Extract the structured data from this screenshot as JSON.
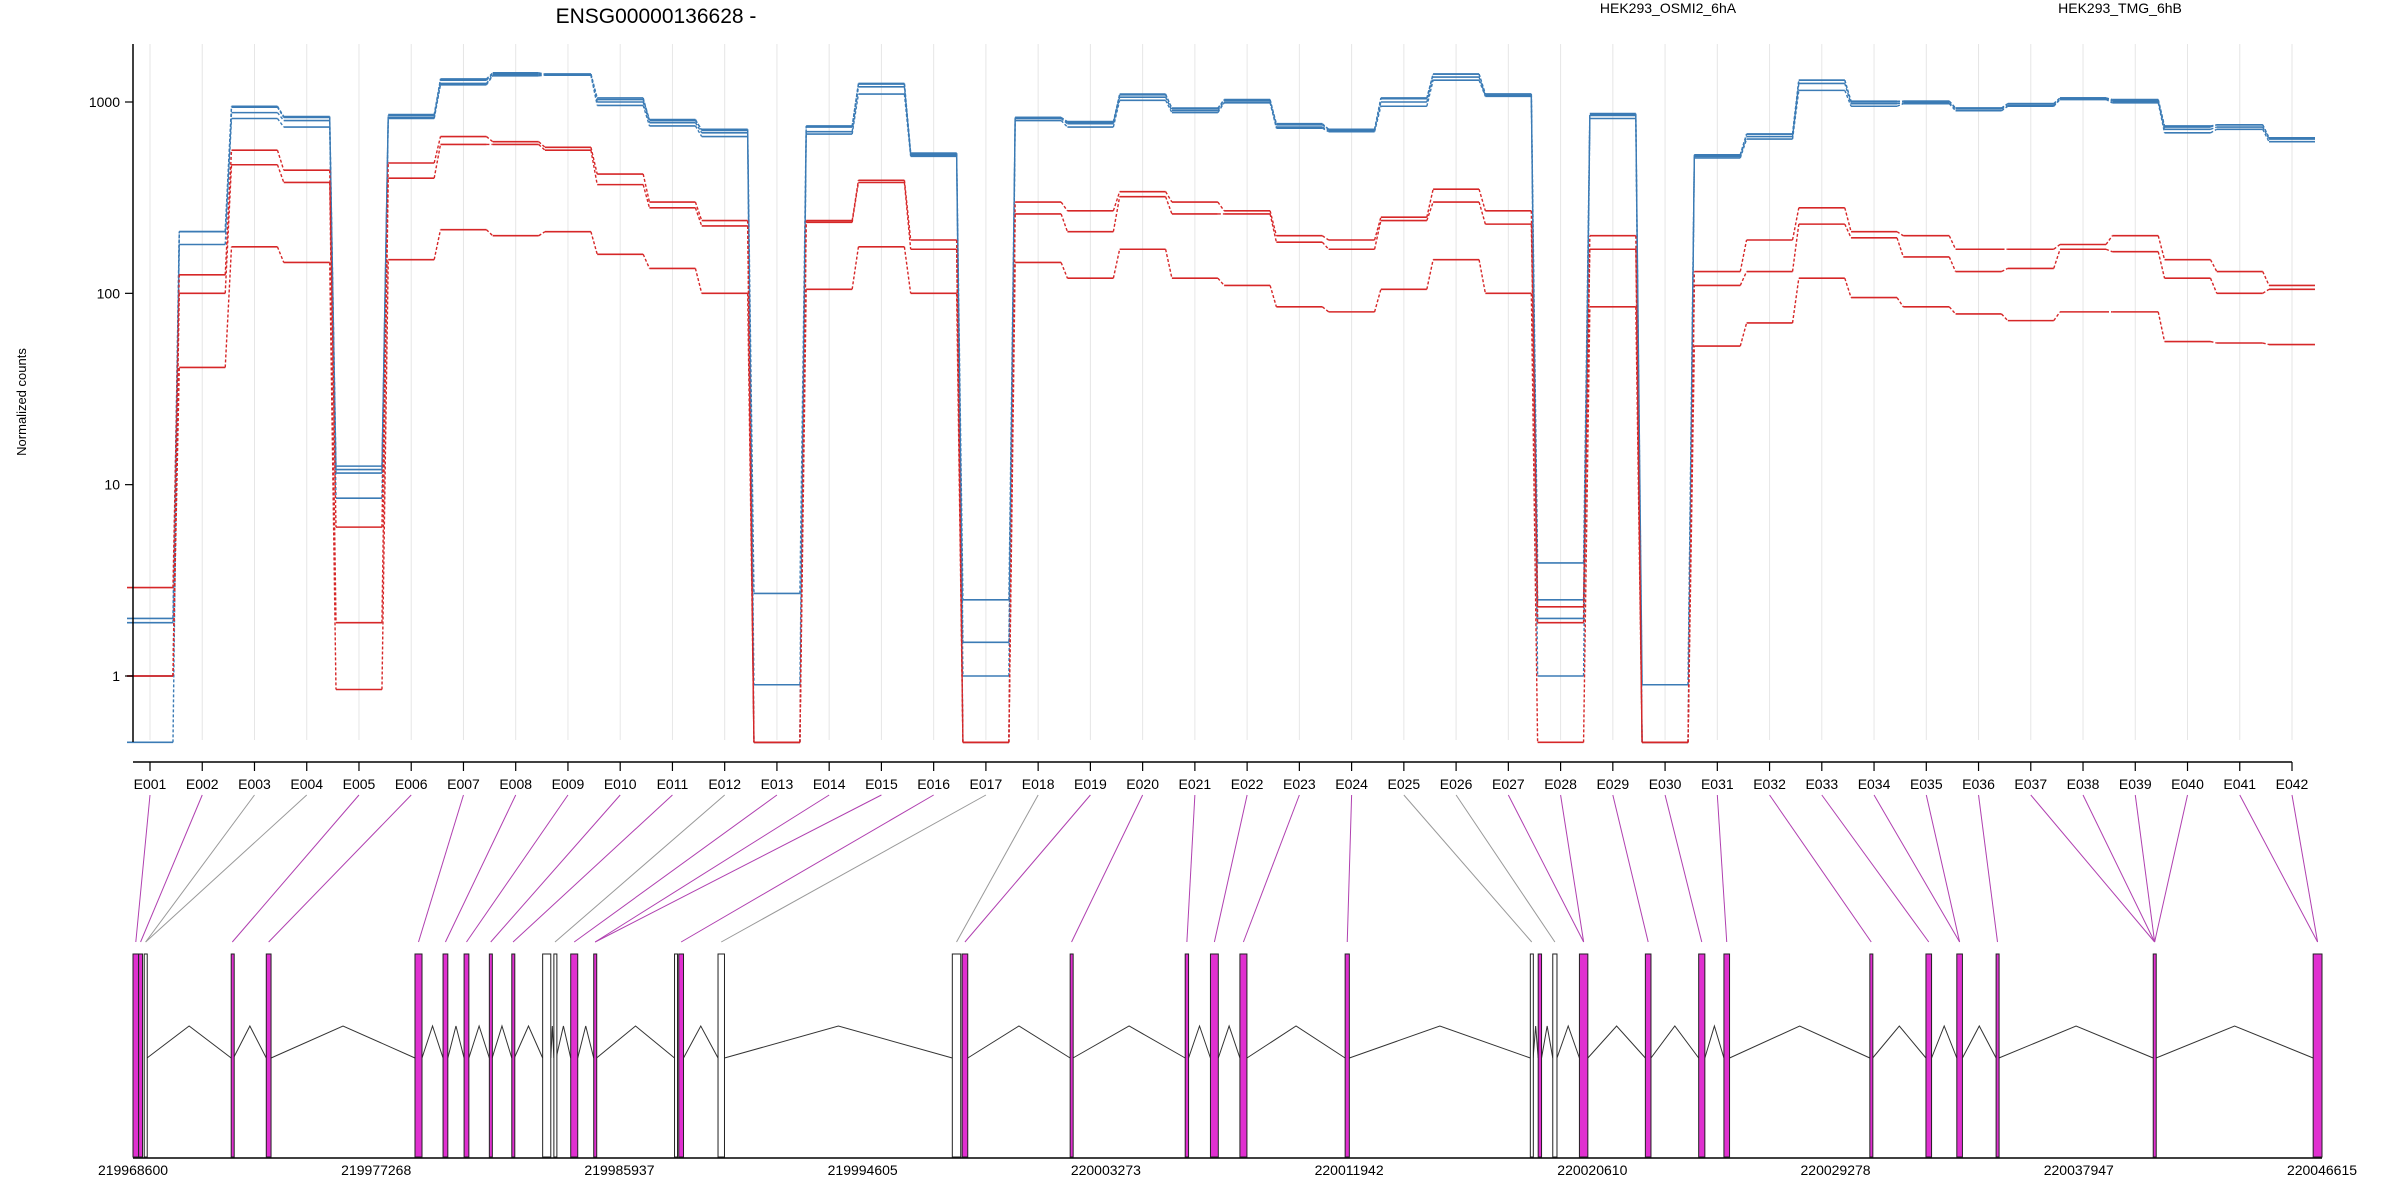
{
  "chart_data": {
    "type": "line",
    "title": "ENSG00000136628 -",
    "ylabel": "Normalized counts",
    "xlabel": "",
    "yscale": "log",
    "ylim": [
      0.5,
      2000
    ],
    "yticks": [
      "1",
      "10",
      "100",
      "1000"
    ],
    "ytick_values": [
      1,
      10,
      100,
      1000
    ],
    "grid": true,
    "legend": [
      {
        "name": "HEK293_OSMI2_6hA",
        "color": "#d62728"
      },
      {
        "name": "HEK293_TMG_6hB",
        "color": "#3b7bb5"
      }
    ],
    "categories": [
      "E001",
      "E002",
      "E003",
      "E004",
      "E005",
      "E006",
      "E007",
      "E008",
      "E009",
      "E010",
      "E011",
      "E012",
      "E013",
      "E014",
      "E015",
      "E016",
      "E017",
      "E018",
      "E019",
      "E020",
      "E021",
      "E022",
      "E023",
      "E024",
      "E025",
      "E026",
      "E027",
      "E028",
      "E029",
      "E030",
      "E031",
      "E032",
      "E033",
      "E034",
      "E035",
      "E036",
      "E037",
      "E038",
      "E039",
      "E040",
      "E041",
      "E042"
    ],
    "series": [
      {
        "group": "HEK293_TMG_6hB",
        "color": "#3b7bb5",
        "values": [
          2.0,
          210,
          940,
          830,
          12.5,
          850,
          1300,
          1400,
          1400,
          1050,
          800,
          720,
          2.7,
          750,
          1250,
          540,
          2.5,
          830,
          780,
          1100,
          920,
          1020,
          770,
          720,
          1050,
          1400,
          1100,
          3.9,
          870,
          0.9,
          530,
          680,
          1300,
          1010,
          1010,
          930,
          980,
          1050,
          1030,
          750,
          760,
          650
        ]
      },
      {
        "group": "HEK293_TMG_6hB",
        "color": "#3b7bb5",
        "values": [
          1.9,
          210,
          880,
          800,
          11.5,
          830,
          1250,
          1380,
          1390,
          1000,
          780,
          690,
          0.9,
          700,
          1200,
          530,
          1.5,
          820,
          770,
          1060,
          900,
          1000,
          740,
          710,
          1000,
          1350,
          1080,
          2.5,
          850,
          0.9,
          520,
          660,
          1250,
          980,
          990,
          920,
          960,
          1040,
          1010,
          720,
          740,
          640
        ]
      },
      {
        "group": "HEK293_TMG_6hB",
        "color": "#3b7bb5",
        "values": [
          1.0,
          180,
          820,
          740,
          8.5,
          820,
          1230,
          1370,
          1380,
          960,
          750,
          660,
          0.45,
          680,
          1100,
          520,
          1.0,
          800,
          740,
          1020,
          880,
          990,
          730,
          700,
          950,
          1300,
          1070,
          1.0,
          820,
          0.45,
          510,
          640,
          1150,
          950,
          980,
          900,
          950,
          1030,
          990,
          690,
          720,
          620
        ]
      },
      {
        "group": "HEK293_TMG_6hB",
        "color": "#3b7bb5",
        "values": [
          0.45,
          210,
          950,
          840,
          12.0,
          860,
          1320,
          1420,
          1400,
          1030,
          810,
          710,
          0.45,
          740,
          1240,
          540,
          0.45,
          830,
          790,
          1090,
          930,
          1030,
          760,
          720,
          1040,
          1400,
          1100,
          2.0,
          860,
          0.45,
          530,
          680,
          1300,
          1000,
          1010,
          930,
          980,
          1050,
          1020,
          740,
          760,
          650
        ]
      },
      {
        "group": "HEK293_OSMI2_6hA",
        "color": "#d62728",
        "values": [
          2.9,
          125,
          560,
          440,
          6.0,
          480,
          660,
          620,
          580,
          420,
          300,
          240,
          0.45,
          240,
          390,
          190,
          0.45,
          300,
          270,
          340,
          300,
          270,
          200,
          190,
          250,
          350,
          270,
          2.3,
          200,
          0.45,
          130,
          190,
          280,
          210,
          200,
          170,
          170,
          180,
          200,
          150,
          130,
          110
        ]
      },
      {
        "group": "HEK293_OSMI2_6hA",
        "color": "#d62728",
        "values": [
          1.0,
          100,
          470,
          380,
          1.9,
          400,
          600,
          600,
          560,
          370,
          280,
          225,
          0.45,
          235,
          380,
          170,
          0.45,
          260,
          210,
          320,
          260,
          260,
          185,
          170,
          240,
          300,
          230,
          1.9,
          170,
          0.45,
          110,
          130,
          230,
          195,
          155,
          130,
          135,
          170,
          165,
          120,
          100,
          105
        ]
      },
      {
        "group": "HEK293_OSMI2_6hA",
        "color": "#d62728",
        "values": [
          1.0,
          41,
          175,
          145,
          0.85,
          150,
          215,
          200,
          210,
          160,
          135,
          100,
          0.45,
          105,
          175,
          100,
          0.45,
          145,
          120,
          170,
          120,
          110,
          85,
          80,
          105,
          150,
          100,
          0.45,
          85,
          0.45,
          53,
          70,
          120,
          95,
          85,
          78,
          72,
          80,
          80,
          56,
          55,
          54
        ]
      }
    ]
  },
  "gene_model": {
    "coordinate_ticks": [
      "219968600",
      "219977268",
      "219985937",
      "219994605",
      "220003273",
      "220011942",
      "220020610",
      "220029278",
      "220037947",
      "220046615"
    ],
    "coordinate_tick_values": [
      219968600,
      219977268,
      219985937,
      219994605,
      220003273,
      220011942,
      220020610,
      220029278,
      220037947,
      220046615
    ],
    "exon_color": "#e030d0",
    "connector_color": "#b040b0",
    "nonexpressed_connector_color": "#999999",
    "exons": [
      [
        219968600,
        219968800,
        "testable"
      ],
      [
        219968800,
        219968940,
        "testable"
      ],
      [
        219969000,
        219969100,
        "untested"
      ],
      [
        219972100,
        219972180,
        "testable"
      ],
      [
        219973350,
        219973520,
        "testable"
      ],
      [
        219978650,
        219978900,
        "testable"
      ],
      [
        219979650,
        219979820,
        "testable"
      ],
      [
        219980400,
        219980570,
        "testable"
      ],
      [
        219981300,
        219981400,
        "testable"
      ],
      [
        219982100,
        219982190,
        "testable"
      ],
      [
        219983200,
        219983490,
        "untested"
      ],
      [
        219983600,
        219983680,
        "untested"
      ],
      [
        219984200,
        219984450,
        "testable"
      ],
      [
        219985020,
        219985120,
        "testable"
      ],
      [
        219987900,
        219988000,
        "untested"
      ],
      [
        219988050,
        219988220,
        "testable"
      ],
      [
        219989450,
        219989680,
        "untested"
      ],
      [
        219997800,
        219998100,
        "untested"
      ],
      [
        219998150,
        219998350,
        "testable"
      ],
      [
        220002000,
        220002100,
        "testable"
      ],
      [
        220006100,
        220006220,
        "testable"
      ],
      [
        220007000,
        220007280,
        "testable"
      ],
      [
        220008050,
        220008300,
        "testable"
      ],
      [
        220011800,
        220011950,
        "testable"
      ],
      [
        220018400,
        220018500,
        "untested"
      ],
      [
        220018680,
        220018800,
        "testable"
      ],
      [
        220019200,
        220019350,
        "untested"
      ],
      [
        220020150,
        220020450,
        "testable"
      ],
      [
        220022500,
        220022700,
        "testable"
      ],
      [
        220024400,
        220024620,
        "testable"
      ],
      [
        220025300,
        220025500,
        "testable"
      ],
      [
        220030500,
        220030600,
        "testable"
      ],
      [
        220032500,
        220032700,
        "testable"
      ],
      [
        220033600,
        220033800,
        "testable"
      ],
      [
        220035000,
        220035100,
        "testable"
      ],
      [
        220040600,
        220040700,
        "testable"
      ],
      [
        220046300,
        220046615,
        "testable"
      ]
    ],
    "bin_to_exon": [
      0,
      1,
      2,
      2,
      3,
      4,
      5,
      6,
      7,
      8,
      9,
      11,
      12,
      13,
      13,
      15,
      16,
      17,
      18,
      19,
      20,
      21,
      22,
      23,
      24,
      26,
      27,
      27,
      28,
      29,
      30,
      31,
      32,
      33,
      33,
      34,
      35,
      35,
      35,
      35,
      36,
      36
    ]
  }
}
